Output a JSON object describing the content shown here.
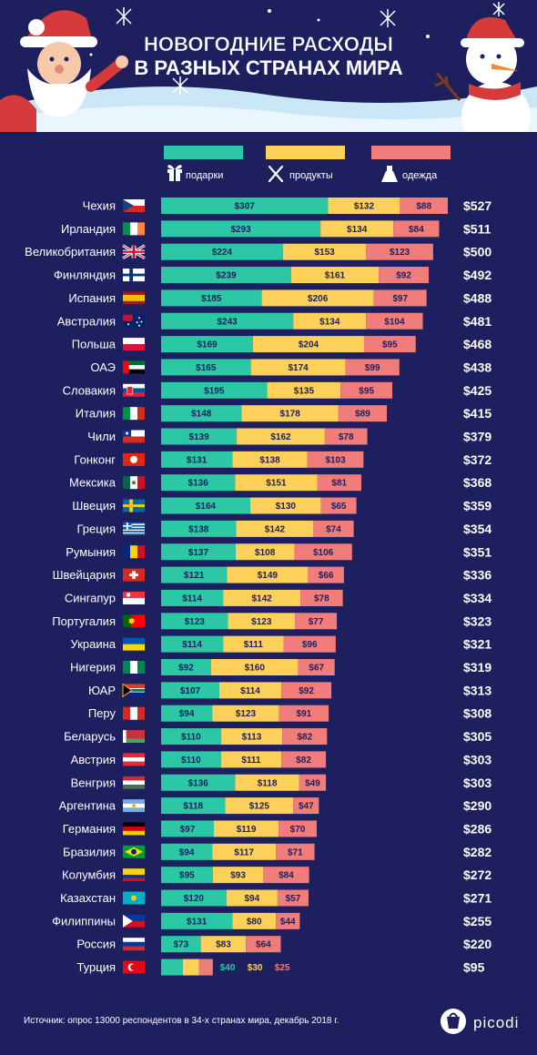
{
  "title_line1": "НОВОГОДНИЕ РАСХОДЫ",
  "title_line2": "В РАЗНЫХ СТРАНАХ МИРА",
  "colors": {
    "background": "#1d1f5e",
    "gifts": "#2cc7a4",
    "food": "#fdd05a",
    "clothes": "#f07d7a",
    "white": "#ffffff"
  },
  "legend": [
    {
      "key": "gifts",
      "label": "подарки",
      "icon": "gift-icon"
    },
    {
      "key": "food",
      "label": "продукты",
      "icon": "cutlery-icon"
    },
    {
      "key": "clothes",
      "label": "одежда",
      "icon": "dress-icon"
    }
  ],
  "chart_data": {
    "type": "bar",
    "stacked": true,
    "orientation": "horizontal",
    "series_keys": [
      "gifts",
      "food",
      "clothes"
    ],
    "currency": "$",
    "rows": [
      {
        "country": "Чехия",
        "flag": "cz",
        "values": [
          307,
          132,
          88
        ],
        "total": 527
      },
      {
        "country": "Ирландия",
        "flag": "ie",
        "values": [
          293,
          134,
          84
        ],
        "total": 511
      },
      {
        "country": "Великобритания",
        "flag": "gb",
        "values": [
          224,
          153,
          123
        ],
        "total": 500
      },
      {
        "country": "Финляндия",
        "flag": "fi",
        "values": [
          239,
          161,
          92
        ],
        "total": 492
      },
      {
        "country": "Испания",
        "flag": "es",
        "values": [
          185,
          206,
          97
        ],
        "total": 488
      },
      {
        "country": "Австралия",
        "flag": "au",
        "values": [
          243,
          134,
          104
        ],
        "total": 481
      },
      {
        "country": "Польша",
        "flag": "pl",
        "values": [
          169,
          204,
          95
        ],
        "total": 468
      },
      {
        "country": "ОАЭ",
        "flag": "ae",
        "values": [
          165,
          174,
          99
        ],
        "total": 438
      },
      {
        "country": "Словакия",
        "flag": "sk",
        "values": [
          195,
          135,
          95
        ],
        "total": 425
      },
      {
        "country": "Италия",
        "flag": "it",
        "values": [
          148,
          178,
          89
        ],
        "total": 415
      },
      {
        "country": "Чили",
        "flag": "cl",
        "values": [
          139,
          162,
          78
        ],
        "total": 379
      },
      {
        "country": "Гонконг",
        "flag": "hk",
        "values": [
          131,
          138,
          103
        ],
        "total": 372
      },
      {
        "country": "Мексика",
        "flag": "mx",
        "values": [
          136,
          151,
          81
        ],
        "total": 368
      },
      {
        "country": "Швеция",
        "flag": "se",
        "values": [
          164,
          130,
          65
        ],
        "total": 359
      },
      {
        "country": "Греция",
        "flag": "gr",
        "values": [
          138,
          142,
          74
        ],
        "total": 354
      },
      {
        "country": "Румыния",
        "flag": "ro",
        "values": [
          137,
          108,
          106
        ],
        "total": 351
      },
      {
        "country": "Швейцария",
        "flag": "ch",
        "values": [
          121,
          149,
          66
        ],
        "total": 336
      },
      {
        "country": "Сингапур",
        "flag": "sg",
        "values": [
          114,
          142,
          78
        ],
        "total": 334
      },
      {
        "country": "Португалия",
        "flag": "pt",
        "values": [
          123,
          123,
          77
        ],
        "total": 323
      },
      {
        "country": "Украина",
        "flag": "ua",
        "values": [
          114,
          111,
          96
        ],
        "total": 321
      },
      {
        "country": "Нигерия",
        "flag": "ng",
        "values": [
          92,
          160,
          67
        ],
        "total": 319
      },
      {
        "country": "ЮАР",
        "flag": "za",
        "values": [
          107,
          114,
          92
        ],
        "total": 313
      },
      {
        "country": "Перу",
        "flag": "pe",
        "values": [
          94,
          123,
          91
        ],
        "total": 308
      },
      {
        "country": "Беларусь",
        "flag": "by",
        "values": [
          110,
          113,
          82
        ],
        "total": 305
      },
      {
        "country": "Австрия",
        "flag": "at",
        "values": [
          110,
          111,
          82
        ],
        "total": 303
      },
      {
        "country": "Венгрия",
        "flag": "hu",
        "values": [
          136,
          118,
          49
        ],
        "total": 303
      },
      {
        "country": "Аргентина",
        "flag": "ar",
        "values": [
          118,
          125,
          47
        ],
        "total": 290
      },
      {
        "country": "Германия",
        "flag": "de",
        "values": [
          97,
          119,
          70
        ],
        "total": 286
      },
      {
        "country": "Бразилия",
        "flag": "br",
        "values": [
          94,
          117,
          71
        ],
        "total": 282
      },
      {
        "country": "Колумбия",
        "flag": "co",
        "values": [
          95,
          93,
          84
        ],
        "total": 272
      },
      {
        "country": "Казахстан",
        "flag": "kz",
        "values": [
          120,
          94,
          57
        ],
        "total": 271
      },
      {
        "country": "Филиппины",
        "flag": "ph",
        "values": [
          131,
          80,
          44
        ],
        "total": 255
      },
      {
        "country": "Россия",
        "flag": "ru",
        "values": [
          73,
          83,
          64
        ],
        "total": 220
      },
      {
        "country": "Турция",
        "flag": "tr",
        "values": [
          40,
          30,
          25
        ],
        "total": 95,
        "labels_outside": true
      }
    ]
  },
  "footer": {
    "source": "Источник: опрос 13000 респондентов в 34-х странах мира, декабрь 2018 г.",
    "brand": "picodi"
  }
}
